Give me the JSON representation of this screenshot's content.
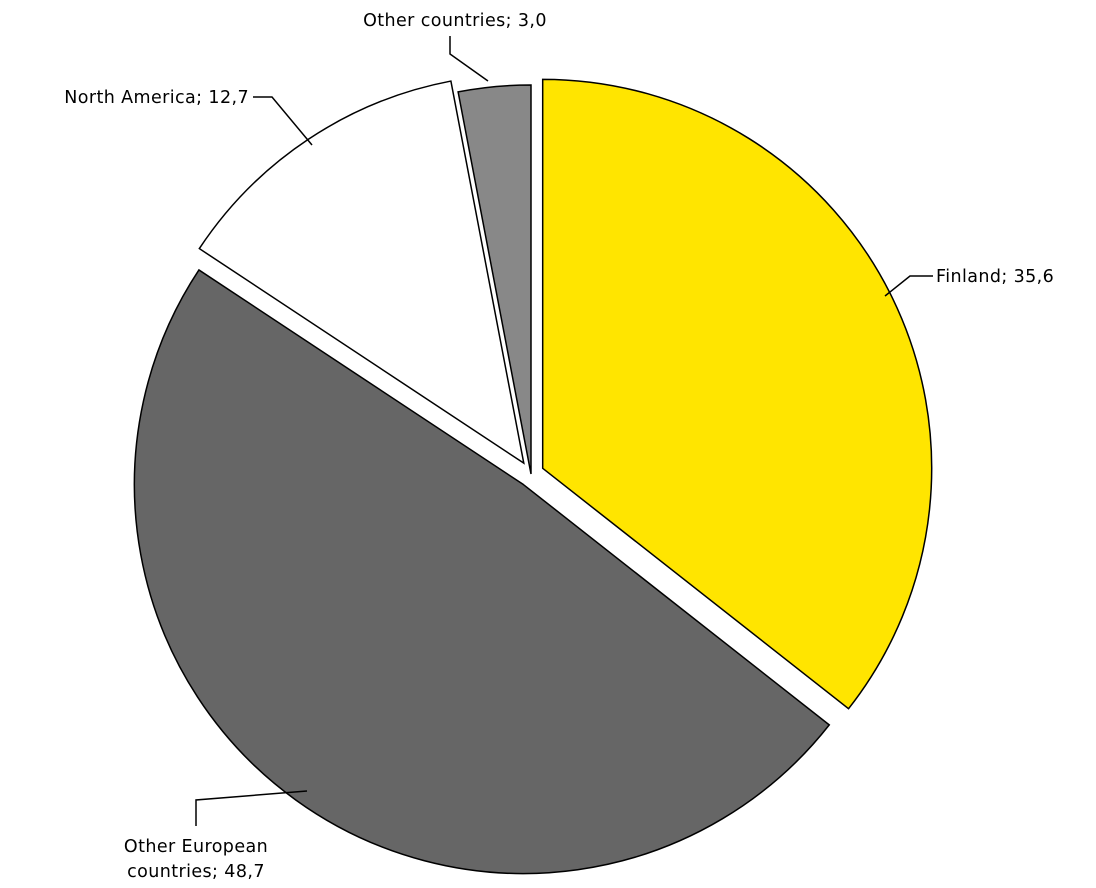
{
  "chart_data": {
    "type": "pie",
    "title": "",
    "legend": "none",
    "series": [
      {
        "name": "Finland",
        "value": 35.6,
        "value_label": "35,6",
        "color": "#FFE500",
        "exploded": true
      },
      {
        "name": "Other European countries",
        "value": 48.7,
        "value_label": "48,7",
        "color": "#666666",
        "exploded": true
      },
      {
        "name": "North America",
        "value": 12.7,
        "value_label": "12,7",
        "color": "#FFFFFF",
        "exploded": true
      },
      {
        "name": "Other countries",
        "value": 3.0,
        "value_label": "3,0",
        "color": "#888888",
        "exploded": false
      }
    ]
  },
  "labels": {
    "finland": "Finland; 35,6",
    "other_european_line1": "Other European",
    "other_european_line2": "countries; 48,7",
    "north_america": "North America; 12,7",
    "other_countries": "Other countries; 3,0"
  }
}
